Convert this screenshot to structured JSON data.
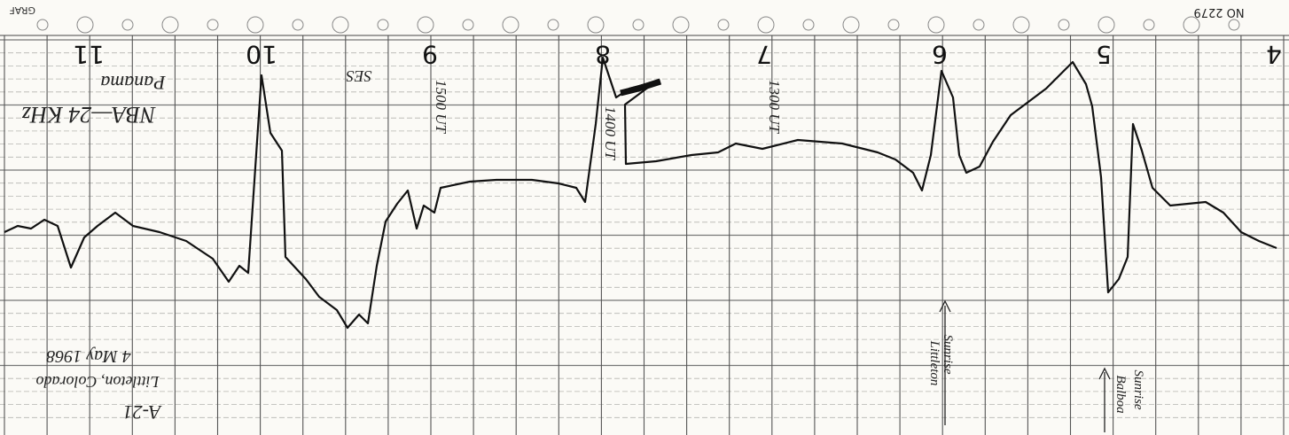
{
  "header": {
    "sheet_number": "NO 2279",
    "brand": "GRAF"
  },
  "hours": [
    "11",
    "10",
    "9",
    "8",
    "7",
    "6",
    "5",
    "4"
  ],
  "notes": {
    "station": "NBA—24 KHz",
    "station_location": "Panama",
    "event": "SES",
    "time_1500": "1500 UT",
    "time_1400": "1400 UT",
    "time_1300": "1300 UT",
    "record_id": "A-21",
    "place": "Littleton, Colorado",
    "date": "4 May 1968",
    "sunrise_littleton_1": "Sunrise",
    "sunrise_littleton_2": "Littleton",
    "sunrise_balboa_1": "Sunrise",
    "sunrise_balboa_2": "Balboa"
  }
}
